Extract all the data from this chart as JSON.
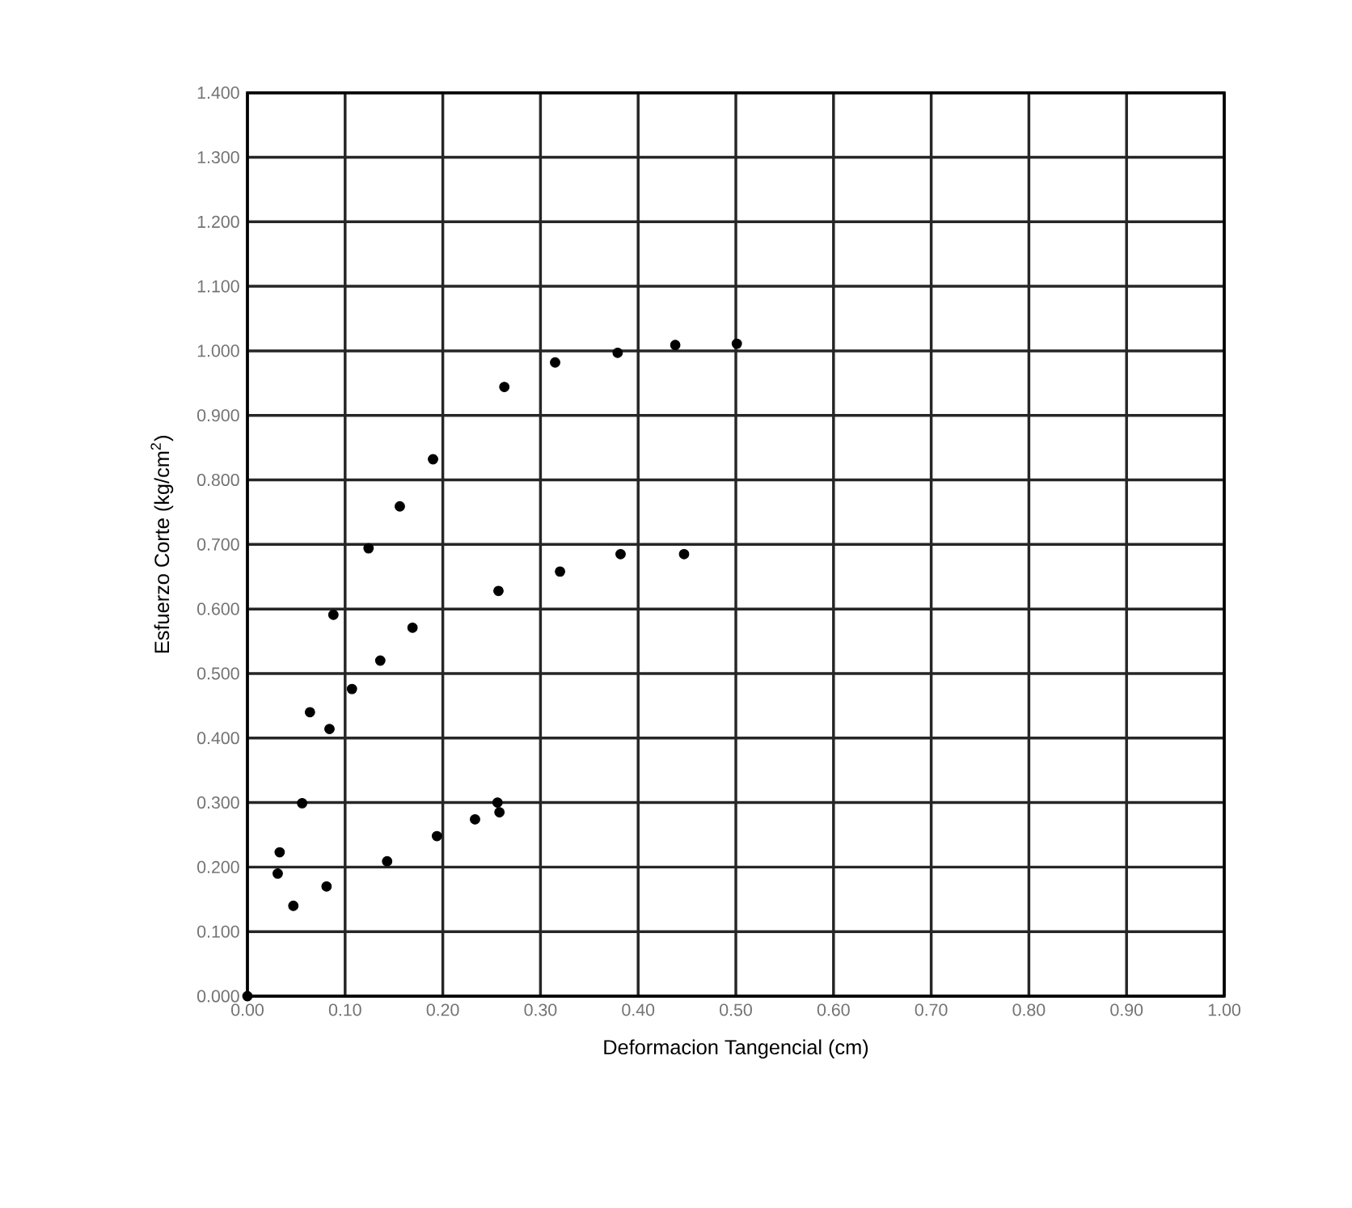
{
  "chart_data": {
    "type": "scatter",
    "xlabel": "Deformacion Tangencial (cm)",
    "ylabel": "Esfuerzo Corte (kg/cm$^{2}$)",
    "x": [
      0.0,
      0.031,
      0.033,
      0.047,
      0.056,
      0.064,
      0.081,
      0.084,
      0.088,
      0.107,
      0.124,
      0.136,
      0.143,
      0.156,
      0.169,
      0.19,
      0.194,
      0.233,
      0.257,
      0.256,
      0.258,
      0.263,
      0.315,
      0.32,
      0.379,
      0.382,
      0.438,
      0.447,
      0.501
    ],
    "values": [
      0.0,
      0.19,
      0.223,
      0.14,
      0.299,
      0.44,
      0.17,
      0.414,
      0.591,
      0.476,
      0.694,
      0.52,
      0.209,
      0.759,
      0.571,
      0.832,
      0.248,
      0.274,
      0.628,
      0.3,
      0.285,
      0.944,
      0.982,
      0.658,
      0.997,
      0.685,
      1.009,
      0.685,
      1.011
    ],
    "color": "#000000",
    "marker": "circle",
    "grid": true,
    "xlim": [
      0,
      1
    ],
    "xticks": [
      {
        "value": 0,
        "label": "0.00"
      },
      {
        "value": 0.1,
        "label": "0.10"
      },
      {
        "value": 0.2,
        "label": "0.20"
      },
      {
        "value": 0.3,
        "label": "0.30"
      },
      {
        "value": 0.4,
        "label": "0.40"
      },
      {
        "value": 0.5,
        "label": "0.50"
      },
      {
        "value": 0.6,
        "label": "0.60"
      },
      {
        "value": 0.7,
        "label": "0.70"
      },
      {
        "value": 0.8,
        "label": "0.80"
      },
      {
        "value": 0.9,
        "label": "0.90"
      },
      {
        "value": 1,
        "label": "1.00"
      }
    ],
    "ylim": [
      0,
      1.4
    ],
    "yticks": [
      {
        "value": 0,
        "label": "0.000"
      },
      {
        "value": 0.1,
        "label": "0.100"
      },
      {
        "value": 0.2,
        "label": "0.200"
      },
      {
        "value": 0.3,
        "label": "0.300"
      },
      {
        "value": 0.4,
        "label": "0.400"
      },
      {
        "value": 0.5,
        "label": "0.500"
      },
      {
        "value": 0.6,
        "label": "0.600"
      },
      {
        "value": 0.7,
        "label": "0.700"
      },
      {
        "value": 0.8,
        "label": "0.800"
      },
      {
        "value": 0.9,
        "label": "0.900"
      },
      {
        "value": 1.0,
        "label": "1.000"
      },
      {
        "value": 1.1,
        "label": "1.100"
      },
      {
        "value": 1.2,
        "label": "1.200"
      },
      {
        "value": 1.3,
        "label": "1.300"
      },
      {
        "value": 1.4,
        "label": "1.400"
      }
    ]
  }
}
